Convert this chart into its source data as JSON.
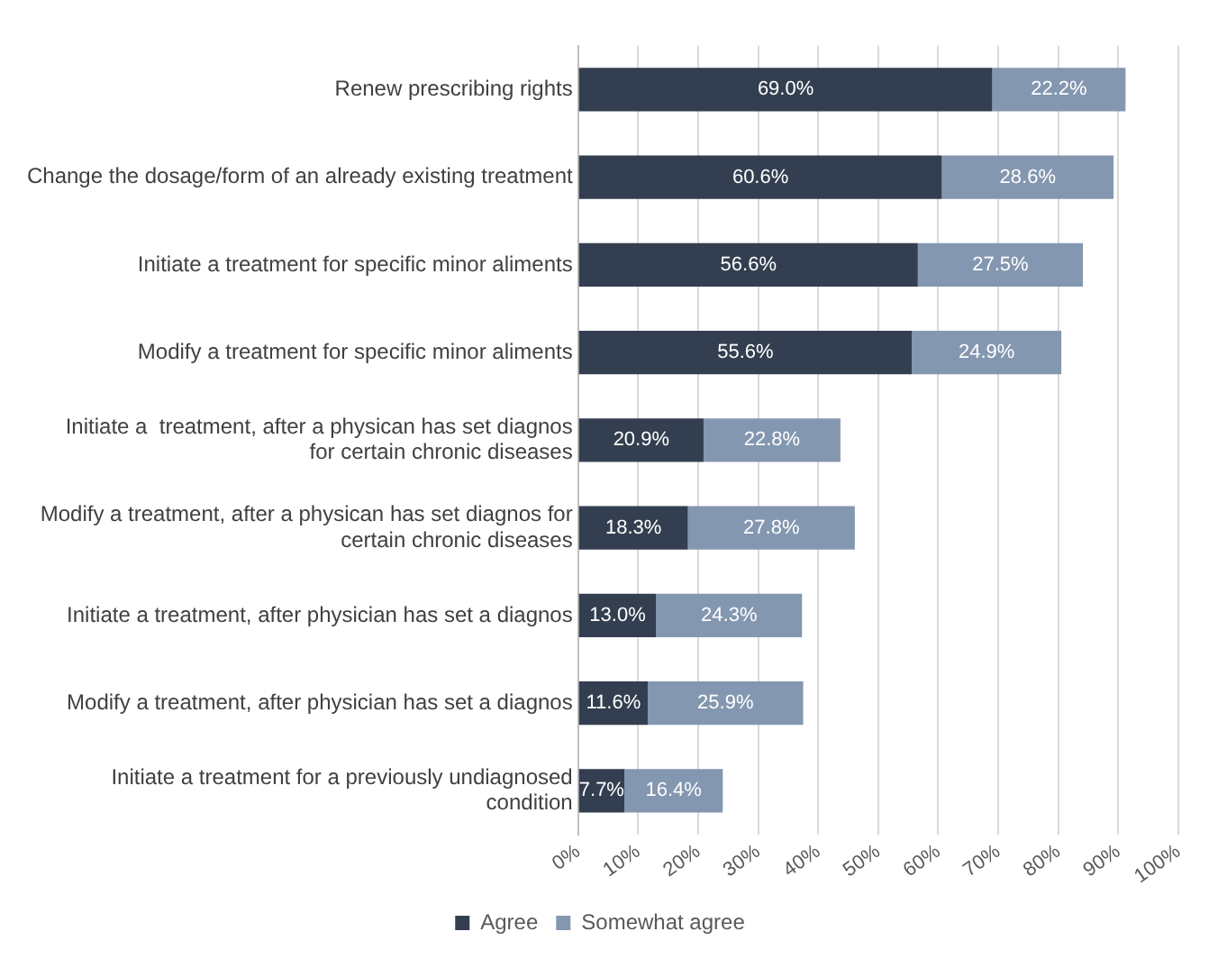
{
  "chart_data": {
    "type": "bar",
    "orientation": "horizontal",
    "stacked": true,
    "categories": [
      "Renew prescribing rights",
      "Change the dosage/form of an already existing treatment",
      "Initiate a treatment for specific minor aliments",
      "Modify a treatment for specific minor aliments",
      "Initiate a  treatment, after a physican has set diagnos for certain chronic diseases",
      "Modify a treatment, after a physican has set diagnos for certain chronic diseases",
      "Initiate a treatment, after physician has set a diagnos",
      "Modify a treatment, after physician has set a diagnos",
      "Initiate a treatment for a previously undiagnosed condition"
    ],
    "series": [
      {
        "name": "Agree",
        "color": "#333f50",
        "values": [
          69.0,
          60.6,
          56.6,
          55.6,
          20.9,
          18.3,
          13.0,
          11.6,
          7.7
        ],
        "value_labels": [
          "69.0%",
          "60.6%",
          "56.6%",
          "55.6%",
          "20.9%",
          "18.3%",
          "13.0%",
          "11.6%",
          "7.7%"
        ]
      },
      {
        "name": "Somewhat agree",
        "color": "#8497b0",
        "values": [
          22.2,
          28.6,
          27.5,
          24.9,
          22.8,
          27.8,
          24.3,
          25.9,
          16.4
        ],
        "value_labels": [
          "22.2%",
          "28.6%",
          "27.5%",
          "24.9%",
          "22.8%",
          "27.8%",
          "24.3%",
          "25.9%",
          "16.4%"
        ]
      }
    ],
    "xlim": [
      0,
      100
    ],
    "xticks": [
      {
        "value": 0,
        "label": "0%"
      },
      {
        "value": 10,
        "label": "10%"
      },
      {
        "value": 20,
        "label": "20%"
      },
      {
        "value": 30,
        "label": "30%"
      },
      {
        "value": 40,
        "label": "40%"
      },
      {
        "value": 50,
        "label": "50%"
      },
      {
        "value": 60,
        "label": "60%"
      },
      {
        "value": 70,
        "label": "70%"
      },
      {
        "value": 80,
        "label": "80%"
      },
      {
        "value": 90,
        "label": "90%"
      },
      {
        "value": 100,
        "label": "100%"
      }
    ],
    "grid": "x",
    "legend": "bottom"
  }
}
